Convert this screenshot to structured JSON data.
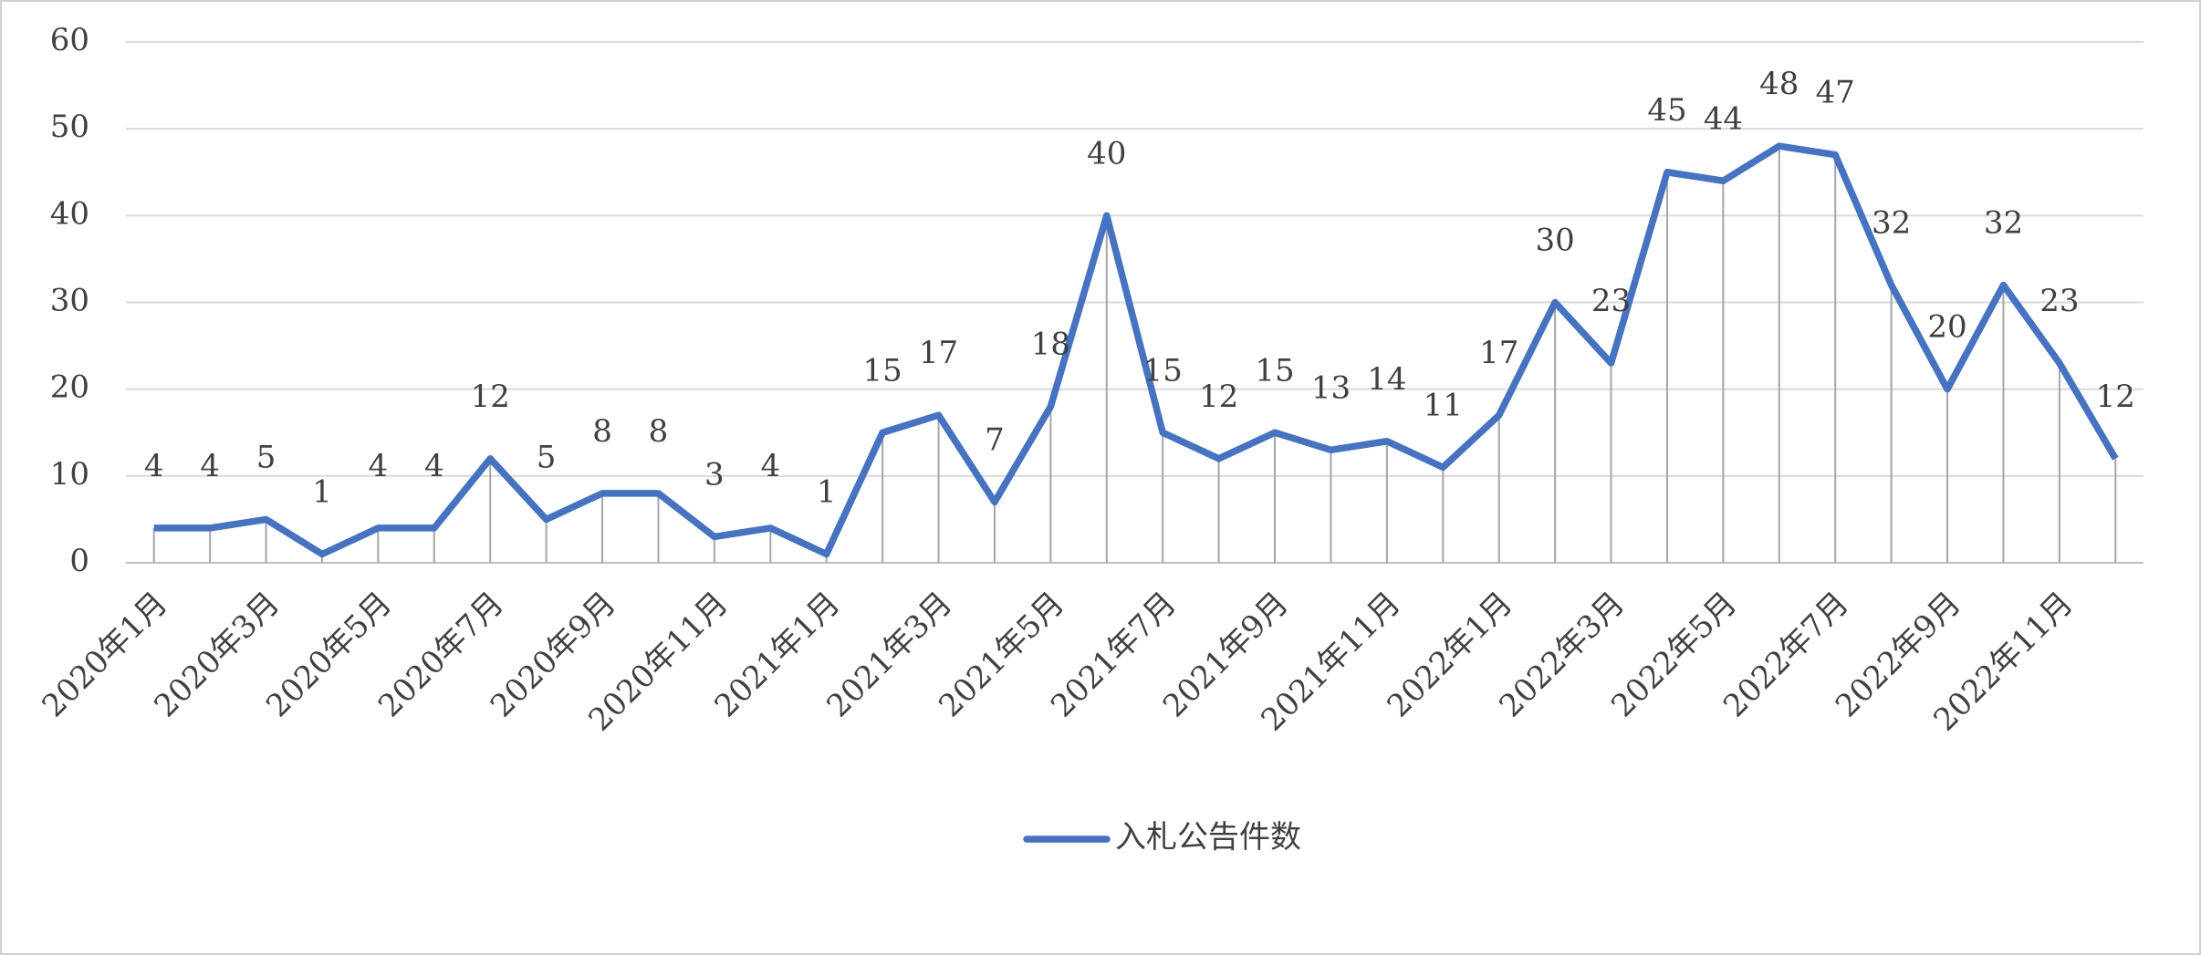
{
  "chart_data": {
    "type": "line",
    "categories": [
      "2020年1月",
      null,
      "2020年3月",
      null,
      "2020年5月",
      null,
      "2020年7月",
      null,
      "2020年9月",
      null,
      "2020年11月",
      null,
      "2021年1月",
      null,
      "2021年3月",
      null,
      "2021年5月",
      null,
      "2021年7月",
      null,
      "2021年9月",
      null,
      "2021年11月",
      null,
      "2022年1月",
      null,
      "2022年3月",
      null,
      "2022年5月",
      null,
      "2022年7月",
      null,
      "2022年9月",
      null,
      "2022年11月",
      null
    ],
    "series": [
      {
        "name": "入札公告件数",
        "color": "#4472c4",
        "values": [
          4,
          4,
          5,
          1,
          4,
          4,
          12,
          5,
          8,
          8,
          3,
          4,
          1,
          15,
          17,
          7,
          18,
          40,
          15,
          12,
          15,
          13,
          14,
          11,
          17,
          30,
          23,
          45,
          44,
          48,
          47,
          32,
          20,
          32,
          23,
          12
        ]
      }
    ],
    "ylim": [
      0,
      60
    ],
    "yticks": [
      0,
      10,
      20,
      30,
      40,
      50,
      60
    ],
    "grid": true,
    "drop_lines": true,
    "legend": "bottom"
  }
}
